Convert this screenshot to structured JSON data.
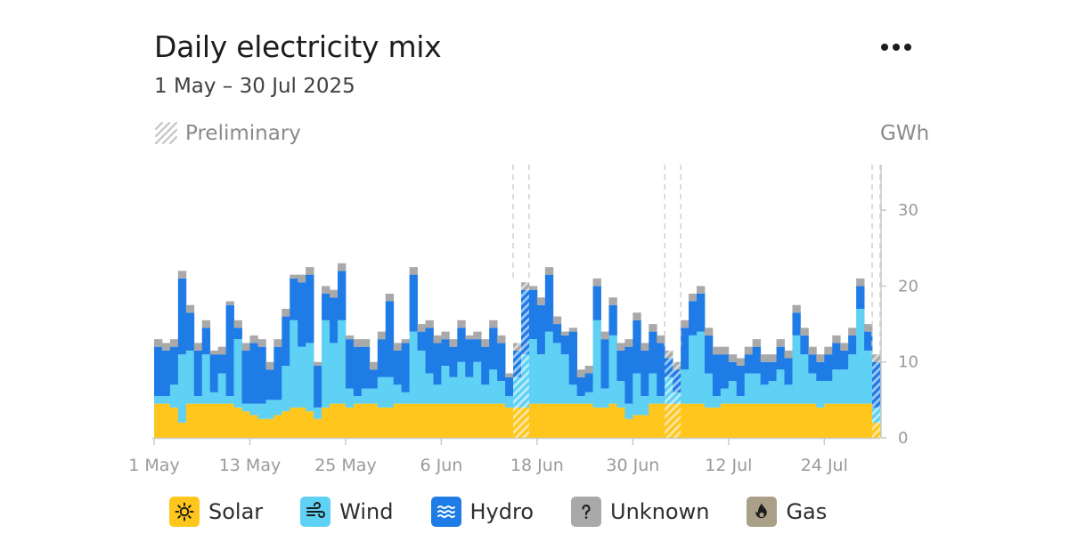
{
  "header": {
    "title": "Daily electricity mix",
    "subtitle": "1 May – 30 Jul 2025",
    "preliminary_label": "Preliminary",
    "unit_label": "GWh",
    "menu_icon": "more-horizontal-icon"
  },
  "colors": {
    "solar": "#ffc61e",
    "wind": "#5fd1f4",
    "hydro": "#1f7ce6",
    "unknown": "#a9a9a9",
    "gas": "#a9a087"
  },
  "legend": [
    {
      "key": "solar",
      "label": "Solar",
      "icon": "sun-icon"
    },
    {
      "key": "wind",
      "label": "Wind",
      "icon": "wind-icon"
    },
    {
      "key": "hydro",
      "label": "Hydro",
      "icon": "waves-icon"
    },
    {
      "key": "unknown",
      "label": "Unknown",
      "icon": "question-icon"
    },
    {
      "key": "gas",
      "label": "Gas",
      "icon": "flame-icon"
    }
  ],
  "chart_data": {
    "type": "bar",
    "stacked": true,
    "x_start": "2025-05-01",
    "x_end": "2025-07-30",
    "x_tick_labels": [
      "1 May",
      "13 May",
      "25 May",
      "6 Jun",
      "18 Jun",
      "30 Jun",
      "12 Jul",
      "24 Jul"
    ],
    "y_ticks": [
      0,
      10,
      20,
      30
    ],
    "ylim": [
      0,
      36
    ],
    "ylabel": "GWh",
    "y_axis_position": "right",
    "grid": false,
    "legend_position": "bottom",
    "preliminary_periods": [
      {
        "start": "2025-06-15",
        "end": "2025-06-16"
      },
      {
        "start": "2025-07-04",
        "end": "2025-07-05"
      },
      {
        "start": "2025-07-30",
        "end": "2025-07-30"
      }
    ],
    "series": [
      {
        "name": "Solar",
        "key": "solar",
        "values": [
          4.5,
          4.5,
          4.0,
          2.0,
          4.5,
          4.5,
          4.5,
          4.5,
          4.5,
          4.5,
          4.0,
          3.5,
          3.0,
          2.5,
          2.5,
          3.0,
          3.5,
          4.0,
          4.0,
          3.5,
          2.5,
          4.0,
          4.5,
          4.5,
          4.0,
          4.5,
          4.5,
          4.5,
          4.0,
          4.0,
          4.5,
          4.5,
          4.5,
          4.5,
          4.5,
          4.5,
          4.5,
          4.5,
          4.5,
          4.5,
          4.5,
          4.5,
          4.5,
          4.5,
          4.0,
          4.0,
          4.0,
          4.5,
          4.5,
          4.5,
          4.5,
          4.5,
          4.5,
          4.5,
          4.5,
          4.0,
          4.0,
          4.5,
          4.0,
          2.5,
          3.0,
          3.0,
          4.5,
          4.5,
          4.5,
          4.5,
          4.5,
          4.5,
          4.5,
          4.0,
          4.0,
          4.5,
          4.5,
          4.5,
          4.5,
          4.5,
          4.5,
          4.5,
          4.5,
          4.5,
          4.5,
          4.5,
          4.5,
          4.0,
          4.5,
          4.5,
          4.5,
          4.5,
          4.5,
          4.5,
          2.0
        ]
      },
      {
        "name": "Wind",
        "key": "wind",
        "values": [
          1.0,
          1.0,
          3.0,
          9.0,
          7.0,
          1.0,
          6.5,
          1.5,
          4.0,
          1.0,
          9.0,
          1.0,
          1.5,
          2.0,
          2.5,
          2.0,
          6.0,
          11.5,
          8.0,
          9.0,
          1.5,
          11.5,
          8.0,
          11.0,
          2.5,
          1.0,
          2.0,
          2.0,
          4.0,
          4.0,
          2.5,
          1.5,
          9.5,
          7.0,
          4.0,
          2.5,
          5.0,
          3.5,
          5.5,
          3.5,
          5.5,
          2.5,
          4.5,
          3.0,
          1.5,
          4.0,
          7.0,
          8.5,
          6.5,
          9.5,
          8.0,
          6.5,
          2.5,
          1.0,
          1.5,
          11.5,
          2.5,
          9.0,
          3.5,
          2.0,
          5.5,
          2.5,
          4.0,
          1.0,
          3.5,
          1.5,
          4.5,
          9.0,
          9.5,
          4.5,
          1.5,
          2.0,
          3.0,
          1.0,
          4.0,
          4.0,
          2.5,
          3.0,
          4.5,
          2.5,
          9.0,
          6.5,
          4.0,
          3.5,
          3.0,
          4.5,
          4.5,
          6.5,
          12.5,
          7.0,
          2.0
        ]
      },
      {
        "name": "Hydro",
        "key": "hydro",
        "values": [
          6.5,
          6.0,
          5.0,
          10.0,
          5.0,
          6.0,
          3.5,
          5.0,
          2.5,
          12.0,
          1.5,
          7.0,
          8.0,
          7.5,
          4.0,
          7.0,
          6.5,
          5.5,
          8.5,
          9.0,
          5.5,
          3.5,
          6.0,
          6.5,
          6.5,
          6.5,
          5.5,
          2.5,
          5.0,
          10.0,
          4.5,
          6.5,
          7.5,
          2.5,
          6.0,
          5.5,
          3.5,
          4.0,
          4.5,
          5.0,
          3.0,
          5.0,
          5.5,
          5.0,
          2.5,
          3.5,
          8.5,
          6.5,
          6.5,
          7.5,
          2.5,
          2.5,
          7.0,
          2.5,
          2.5,
          4.5,
          6.5,
          4.0,
          4.0,
          7.5,
          7.0,
          6.0,
          5.5,
          7.0,
          2.5,
          3.0,
          5.5,
          4.5,
          5.0,
          5.0,
          5.5,
          4.5,
          2.5,
          4.0,
          2.5,
          3.5,
          3.0,
          2.5,
          3.0,
          3.5,
          3.0,
          2.5,
          2.5,
          2.5,
          3.5,
          3.5,
          2.5,
          2.5,
          3.0,
          2.5,
          6.0
        ]
      },
      {
        "name": "Unknown",
        "key": "unknown",
        "values": [
          1.0,
          1.0,
          1.0,
          1.0,
          1.0,
          1.0,
          1.0,
          0.5,
          1.0,
          0.5,
          1.0,
          1.0,
          1.0,
          1.0,
          1.0,
          1.0,
          1.0,
          0.5,
          1.0,
          1.0,
          0.5,
          1.0,
          1.0,
          1.0,
          0.5,
          1.0,
          1.0,
          1.0,
          1.0,
          1.0,
          1.0,
          0.5,
          1.0,
          1.0,
          1.0,
          1.0,
          1.0,
          1.0,
          1.0,
          0.5,
          1.0,
          1.0,
          1.0,
          1.0,
          0.5,
          1.0,
          1.0,
          0.5,
          1.0,
          1.0,
          1.0,
          0.5,
          0.5,
          1.0,
          1.0,
          1.0,
          1.0,
          1.0,
          1.0,
          1.0,
          1.0,
          1.0,
          1.0,
          1.0,
          1.0,
          1.0,
          1.0,
          1.0,
          1.0,
          1.0,
          1.0,
          1.0,
          1.0,
          1.0,
          1.0,
          1.0,
          1.0,
          1.0,
          1.0,
          1.0,
          1.0,
          1.0,
          1.0,
          1.0,
          1.0,
          1.0,
          1.0,
          1.0,
          1.0,
          1.0,
          1.0
        ]
      },
      {
        "name": "Gas",
        "key": "gas",
        "values": [
          0,
          0,
          0,
          0,
          0,
          0,
          0,
          0,
          0,
          0,
          0,
          0,
          0,
          0,
          0,
          0,
          0,
          0,
          0,
          0,
          0,
          0,
          0,
          0,
          0,
          0,
          0,
          0,
          0,
          0,
          0,
          0,
          0,
          0,
          0,
          0,
          0,
          0,
          0,
          0,
          0,
          0,
          0,
          0,
          0,
          0,
          0,
          0,
          0,
          0,
          0,
          0,
          0,
          0,
          0,
          0,
          0,
          0,
          0,
          0,
          0,
          0,
          0,
          0,
          0,
          0,
          0,
          0,
          0,
          0,
          0,
          0,
          0,
          0,
          0,
          0,
          0,
          0,
          0,
          0,
          0,
          0,
          0,
          0,
          0,
          0,
          0,
          0,
          0,
          0,
          0
        ]
      }
    ]
  }
}
